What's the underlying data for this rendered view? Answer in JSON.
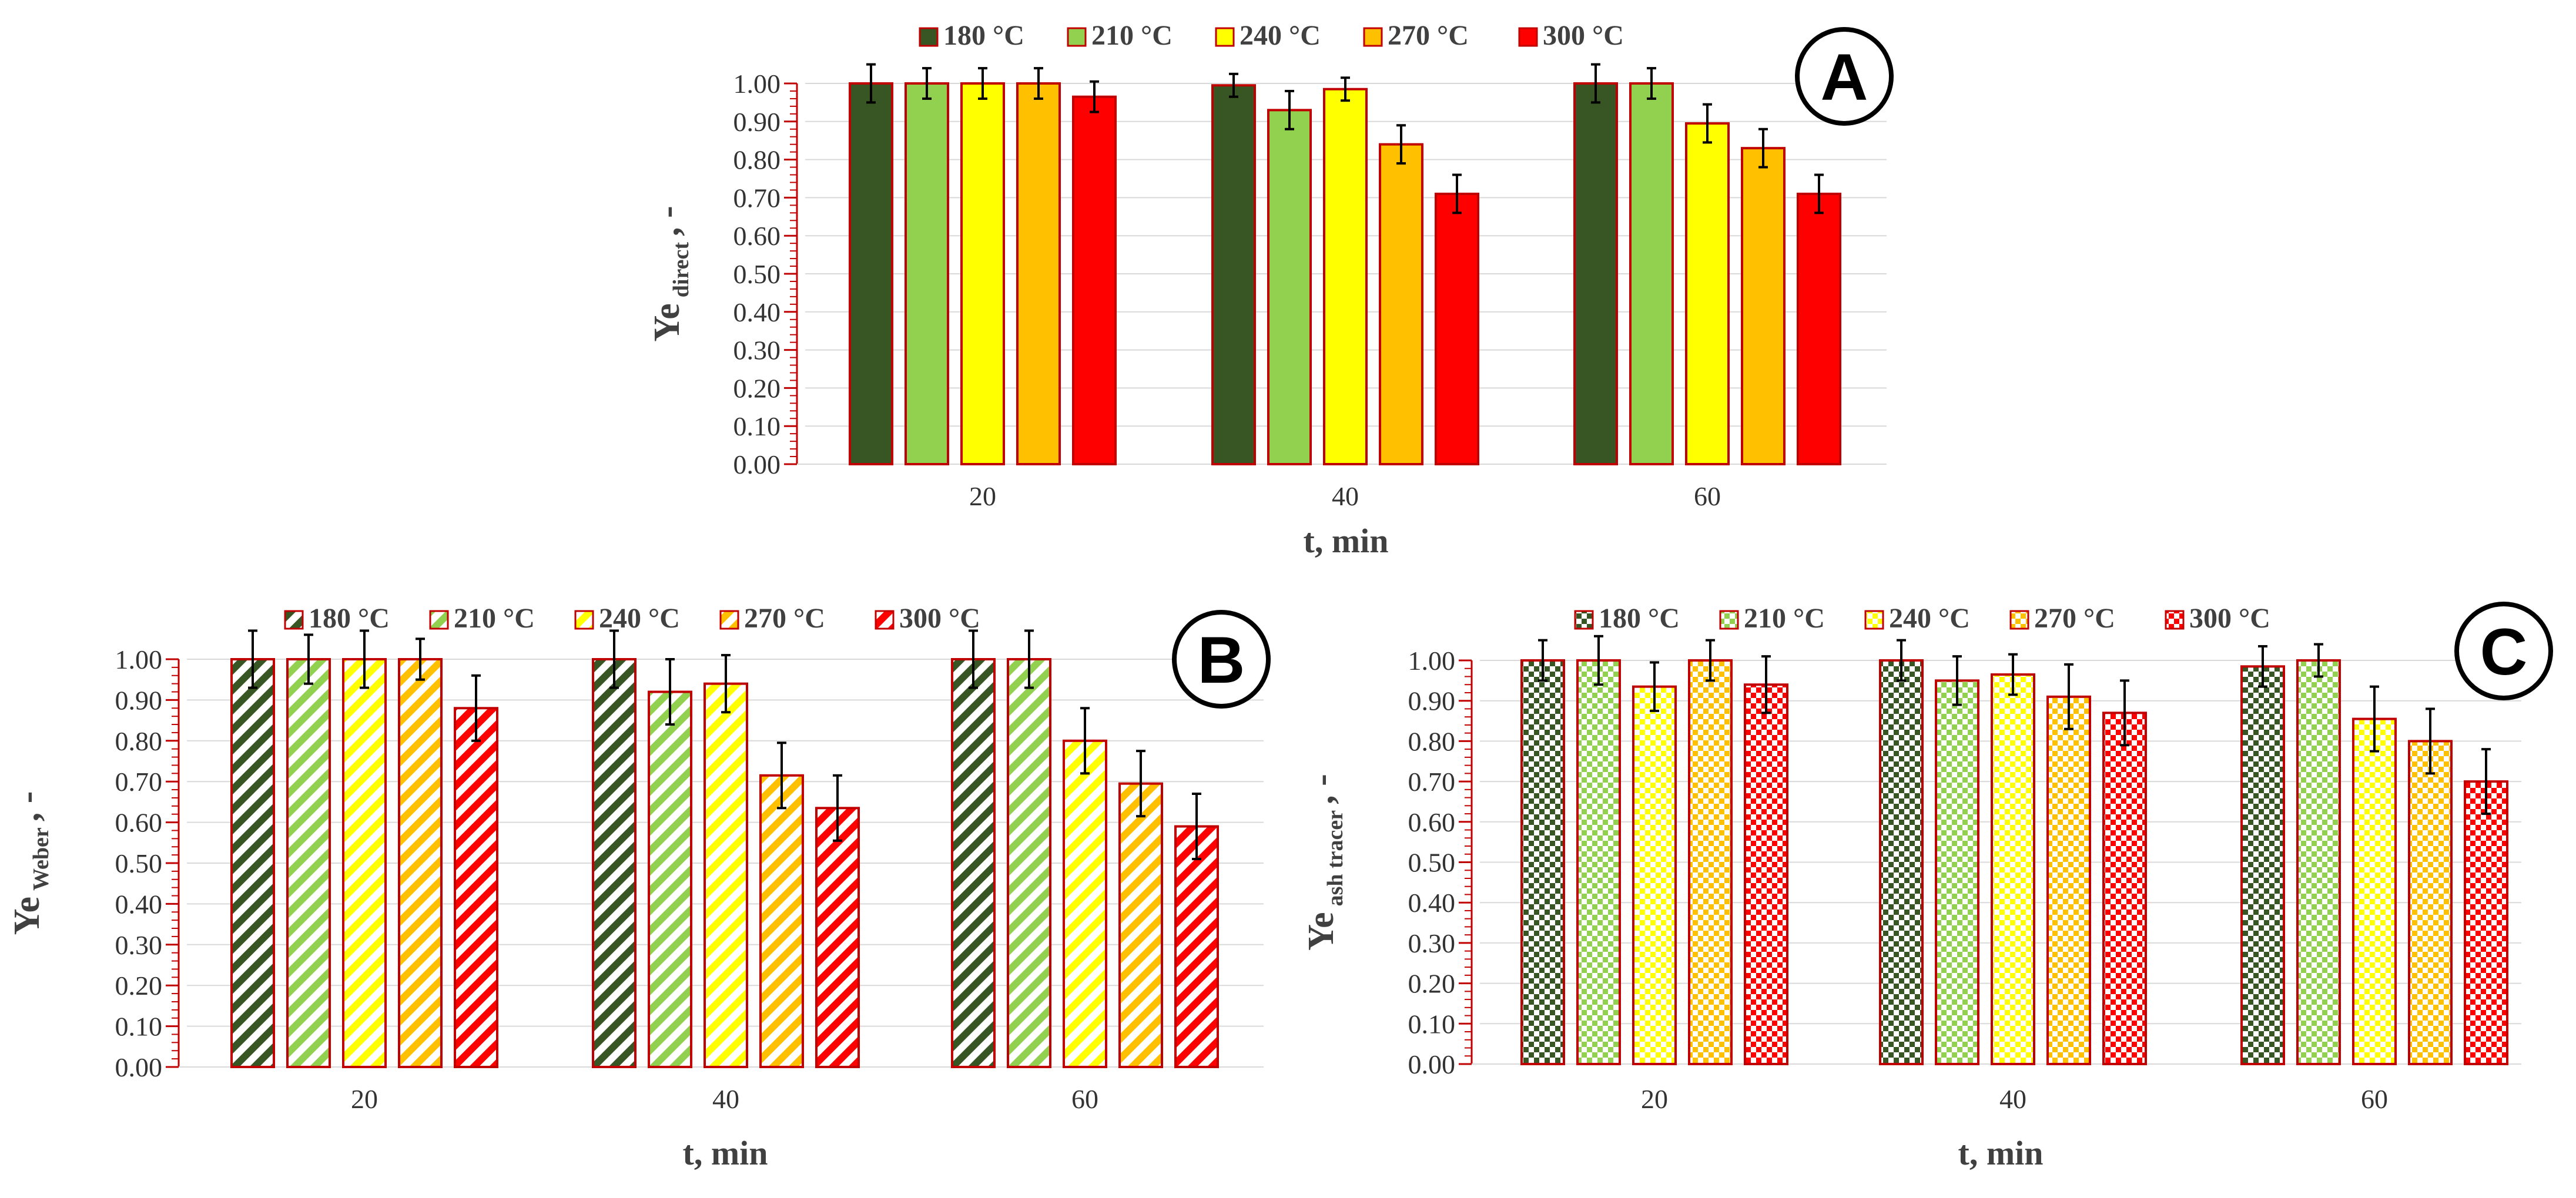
{
  "colors": {
    "bar_stroke": "#C00000",
    "axis": "#C00000",
    "grid": "#D9D9D9",
    "series": [
      "#375623",
      "#92D050",
      "#FFFF00",
      "#FFC000",
      "#FF0000"
    ]
  },
  "chart_data": [
    {
      "panel": "A",
      "type": "bar",
      "pattern": "solid",
      "categories": [
        "20",
        "40",
        "60"
      ],
      "series": [
        {
          "name": "180 °C",
          "values": [
            1.0,
            0.995,
            1.0
          ],
          "errors": [
            0.05,
            0.03,
            0.05
          ]
        },
        {
          "name": "210 °C",
          "values": [
            1.0,
            0.93,
            1.0
          ],
          "errors": [
            0.04,
            0.05,
            0.04
          ]
        },
        {
          "name": "240 °C",
          "values": [
            1.0,
            0.985,
            0.895
          ],
          "errors": [
            0.04,
            0.03,
            0.05
          ]
        },
        {
          "name": "270  °C",
          "values": [
            1.0,
            0.84,
            0.83
          ],
          "errors": [
            0.04,
            0.05,
            0.05
          ]
        },
        {
          "name": "300 °C",
          "values": [
            0.965,
            0.71,
            0.71
          ],
          "errors": [
            0.04,
            0.05,
            0.05
          ]
        }
      ],
      "ylim": [
        0,
        1
      ],
      "yticks": [
        "0.00",
        "0.10",
        "0.20",
        "0.30",
        "0.40",
        "0.50",
        "0.60",
        "0.70",
        "0.80",
        "0.90",
        "1.00"
      ],
      "ylabel_main": "Ye",
      "ylabel_sub": "direct",
      "ylabel_tail": ", -",
      "xlabel": "t, min"
    },
    {
      "panel": "B",
      "type": "bar",
      "pattern": "diagonal",
      "categories": [
        "20",
        "40",
        "60"
      ],
      "series": [
        {
          "name": "180 °C",
          "values": [
            1.0,
            1.0,
            1.0
          ],
          "errors": [
            0.07,
            0.07,
            0.07
          ]
        },
        {
          "name": "210 °C",
          "values": [
            1.0,
            0.92,
            1.0
          ],
          "errors": [
            0.06,
            0.08,
            0.07
          ]
        },
        {
          "name": "240 °C",
          "values": [
            1.0,
            0.94,
            0.8
          ],
          "errors": [
            0.07,
            0.07,
            0.08
          ]
        },
        {
          "name": "270  °C",
          "values": [
            1.0,
            0.715,
            0.695
          ],
          "errors": [
            0.05,
            0.08,
            0.08
          ]
        },
        {
          "name": "300 °C",
          "values": [
            0.88,
            0.635,
            0.59
          ],
          "errors": [
            0.08,
            0.08,
            0.08
          ]
        }
      ],
      "ylim": [
        0,
        1
      ],
      "yticks": [
        "0.00",
        "0.10",
        "0.20",
        "0.30",
        "0.40",
        "0.50",
        "0.60",
        "0.70",
        "0.80",
        "0.90",
        "1.00"
      ],
      "ylabel_main": "Ye",
      "ylabel_sub": "Weber",
      "ylabel_tail": ", -",
      "xlabel": "t, min"
    },
    {
      "panel": "C",
      "type": "bar",
      "pattern": "checker",
      "categories": [
        "20",
        "40",
        "60"
      ],
      "series": [
        {
          "name": "180 °C",
          "values": [
            1.0,
            1.0,
            0.985
          ],
          "errors": [
            0.05,
            0.05,
            0.05
          ]
        },
        {
          "name": "210 °C",
          "values": [
            1.0,
            0.95,
            1.0
          ],
          "errors": [
            0.06,
            0.06,
            0.04
          ]
        },
        {
          "name": "240 °C",
          "values": [
            0.935,
            0.965,
            0.855
          ],
          "errors": [
            0.06,
            0.05,
            0.08
          ]
        },
        {
          "name": "270  °C",
          "values": [
            1.0,
            0.91,
            0.8
          ],
          "errors": [
            0.05,
            0.08,
            0.08
          ]
        },
        {
          "name": "300 °C",
          "values": [
            0.94,
            0.87,
            0.7
          ],
          "errors": [
            0.07,
            0.08,
            0.08
          ]
        }
      ],
      "ylim": [
        0,
        1
      ],
      "yticks": [
        "0.00",
        "0.10",
        "0.20",
        "0.30",
        "0.40",
        "0.50",
        "0.60",
        "0.70",
        "0.80",
        "0.90",
        "1.00"
      ],
      "ylabel_main": "Ye",
      "ylabel_sub": "ash tracer",
      "ylabel_tail": ", -",
      "xlabel": "t, min"
    }
  ]
}
